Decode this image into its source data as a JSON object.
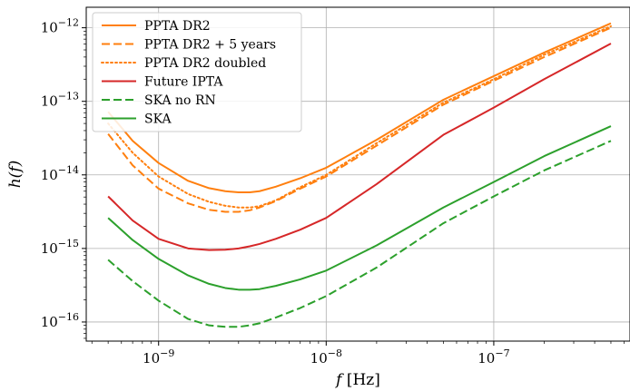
{
  "chart_data": {
    "type": "line",
    "title": "",
    "xlabel": "f [Hz]",
    "ylabel": "h(f)",
    "xscale": "log",
    "yscale": "log",
    "xlim": [
      3.7e-10,
      6.5e-07
    ],
    "ylim": [
      5.5e-17,
      1.9e-12
    ],
    "grid": true,
    "legend": "top-left",
    "x_ticks": [
      {
        "value": 1e-09,
        "base": "10",
        "exp": "−9"
      },
      {
        "value": 1e-08,
        "base": "10",
        "exp": "−8"
      },
      {
        "value": 1e-07,
        "base": "10",
        "exp": "−7"
      }
    ],
    "y_ticks": [
      {
        "value": 1e-16,
        "base": "10",
        "exp": "−16"
      },
      {
        "value": 1e-15,
        "base": "10",
        "exp": "−15"
      },
      {
        "value": 1e-14,
        "base": "10",
        "exp": "−14"
      },
      {
        "value": 1e-13,
        "base": "10",
        "exp": "−13"
      },
      {
        "value": 1e-12,
        "base": "10",
        "exp": "−12"
      }
    ],
    "x": [
      5e-10,
      7e-10,
      1e-09,
      1.5e-09,
      2e-09,
      2.5e-09,
      3e-09,
      3.5e-09,
      4e-09,
      5e-09,
      7e-09,
      1e-08,
      2e-08,
      5e-08,
      1e-07,
      2e-07,
      5e-07
    ],
    "series": [
      {
        "name": "PPTA DR2",
        "color": "#ff7f0e",
        "dash": "solid",
        "values": [
          7.2e-14,
          2.9e-14,
          1.45e-14,
          8.3e-15,
          6.6e-15,
          6e-15,
          5.8e-15,
          5.8e-15,
          6e-15,
          6.9e-15,
          9e-15,
          1.25e-14,
          3e-14,
          1.05e-13,
          2.2e-13,
          4.6e-13,
          1.15e-12
        ]
      },
      {
        "name": "PPTA DR2 + 5 years",
        "color": "#ff7f0e",
        "dash": "dashed",
        "values": [
          3.6e-14,
          1.35e-14,
          6.5e-15,
          4.1e-15,
          3.35e-15,
          3.15e-15,
          3.15e-15,
          3.3e-15,
          3.6e-15,
          4.4e-15,
          6.5e-15,
          9.5e-15,
          2.5e-14,
          9e-14,
          1.9e-13,
          4e-13,
          1e-12
        ]
      },
      {
        "name": "PPTA DR2 doubled",
        "color": "#ff7f0e",
        "dash": "dotted",
        "values": [
          5e-14,
          2e-14,
          9.5e-15,
          5.5e-15,
          4.3e-15,
          3.8e-15,
          3.6e-15,
          3.6e-15,
          3.75e-15,
          4.5e-15,
          6.8e-15,
          1e-14,
          2.7e-14,
          9.6e-14,
          2e-13,
          4.3e-13,
          1.05e-12
        ]
      },
      {
        "name": "Future IPTA",
        "color": "#d62728",
        "dash": "solid",
        "values": [
          5.1e-15,
          2.4e-15,
          1.35e-15,
          1e-15,
          9.5e-16,
          9.6e-16,
          1e-15,
          1.07e-15,
          1.15e-15,
          1.35e-15,
          1.8e-15,
          2.6e-15,
          7.5e-15,
          3.5e-14,
          8.2e-14,
          2e-13,
          6.1e-13
        ]
      },
      {
        "name": "SKA no RN",
        "color": "#2ca02c",
        "dash": "dashed",
        "values": [
          7e-16,
          3.6e-16,
          1.95e-16,
          1.1e-16,
          9e-17,
          8.6e-17,
          8.6e-17,
          9e-17,
          9.6e-17,
          1.15e-16,
          1.55e-16,
          2.25e-16,
          5.5e-16,
          2.2e-15,
          5.1e-15,
          1.15e-14,
          2.9e-14
        ]
      },
      {
        "name": "SKA",
        "color": "#2ca02c",
        "dash": "solid",
        "values": [
          2.6e-15,
          1.3e-15,
          7.2e-16,
          4.3e-16,
          3.3e-16,
          2.9e-16,
          2.75e-16,
          2.75e-16,
          2.8e-16,
          3.1e-16,
          3.8e-16,
          5e-16,
          1.1e-15,
          3.6e-15,
          8e-15,
          1.8e-14,
          4.6e-14
        ]
      }
    ]
  }
}
